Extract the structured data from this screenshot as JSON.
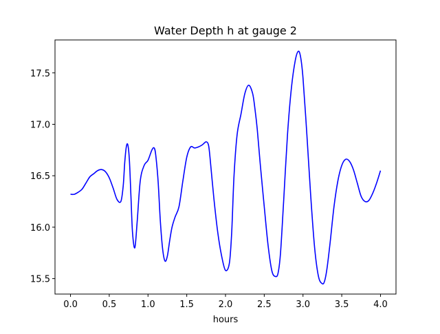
{
  "chart_data": {
    "type": "line",
    "title": "Water Depth h at gauge 2",
    "xlabel": "hours",
    "ylabel": "",
    "xlim": [
      -0.2,
      4.2
    ],
    "ylim": [
      15.35,
      17.82
    ],
    "xticks": [
      0.0,
      0.5,
      1.0,
      1.5,
      2.0,
      2.5,
      3.0,
      3.5,
      4.0
    ],
    "xtick_labels": [
      "0.0",
      "0.5",
      "1.0",
      "1.5",
      "2.0",
      "2.5",
      "3.0",
      "3.5",
      "4.0"
    ],
    "yticks": [
      15.5,
      16.0,
      16.5,
      17.0,
      17.5
    ],
    "ytick_labels": [
      "15.5",
      "16.0",
      "16.5",
      "17.0",
      "17.5"
    ],
    "grid": false,
    "series": [
      {
        "color": "#0000ff",
        "x": [
          0.0,
          0.05,
          0.1,
          0.15,
          0.2,
          0.25,
          0.3,
          0.35,
          0.4,
          0.45,
          0.5,
          0.55,
          0.6,
          0.65,
          0.68,
          0.7,
          0.72,
          0.74,
          0.76,
          0.78,
          0.8,
          0.83,
          0.86,
          0.9,
          0.95,
          1.0,
          1.05,
          1.08,
          1.1,
          1.13,
          1.16,
          1.19,
          1.22,
          1.25,
          1.28,
          1.31,
          1.35,
          1.4,
          1.45,
          1.5,
          1.55,
          1.6,
          1.65,
          1.7,
          1.75,
          1.78,
          1.8,
          1.85,
          1.9,
          1.95,
          2.0,
          2.05,
          2.08,
          2.11,
          2.15,
          2.2,
          2.25,
          2.3,
          2.35,
          2.38,
          2.41,
          2.45,
          2.5,
          2.55,
          2.6,
          2.65,
          2.68,
          2.71,
          2.75,
          2.8,
          2.85,
          2.9,
          2.94,
          2.97,
          3.0,
          3.05,
          3.1,
          3.15,
          3.2,
          3.25,
          3.28,
          3.31,
          3.35,
          3.4,
          3.45,
          3.5,
          3.55,
          3.6,
          3.65,
          3.7,
          3.75,
          3.8,
          3.85,
          3.9,
          3.95,
          4.0
        ],
        "y": [
          16.32,
          16.32,
          16.34,
          16.37,
          16.43,
          16.49,
          16.52,
          16.55,
          16.56,
          16.54,
          16.48,
          16.38,
          16.27,
          16.25,
          16.4,
          16.63,
          16.78,
          16.8,
          16.65,
          16.3,
          15.95,
          15.8,
          16.05,
          16.45,
          16.6,
          16.65,
          16.75,
          16.77,
          16.7,
          16.45,
          16.05,
          15.78,
          15.67,
          15.72,
          15.87,
          16.0,
          16.1,
          16.2,
          16.45,
          16.68,
          16.78,
          16.77,
          16.78,
          16.8,
          16.83,
          16.8,
          16.68,
          16.28,
          15.95,
          15.72,
          15.58,
          15.65,
          15.95,
          16.5,
          16.9,
          17.1,
          17.3,
          17.38,
          17.3,
          17.15,
          16.95,
          16.6,
          16.2,
          15.82,
          15.57,
          15.52,
          15.56,
          15.75,
          16.25,
          16.9,
          17.35,
          17.62,
          17.71,
          17.65,
          17.45,
          16.9,
          16.3,
          15.8,
          15.52,
          15.45,
          15.48,
          15.6,
          15.85,
          16.2,
          16.45,
          16.6,
          16.66,
          16.64,
          16.56,
          16.43,
          16.3,
          16.25,
          16.26,
          16.33,
          16.43,
          16.55
        ]
      }
    ]
  }
}
